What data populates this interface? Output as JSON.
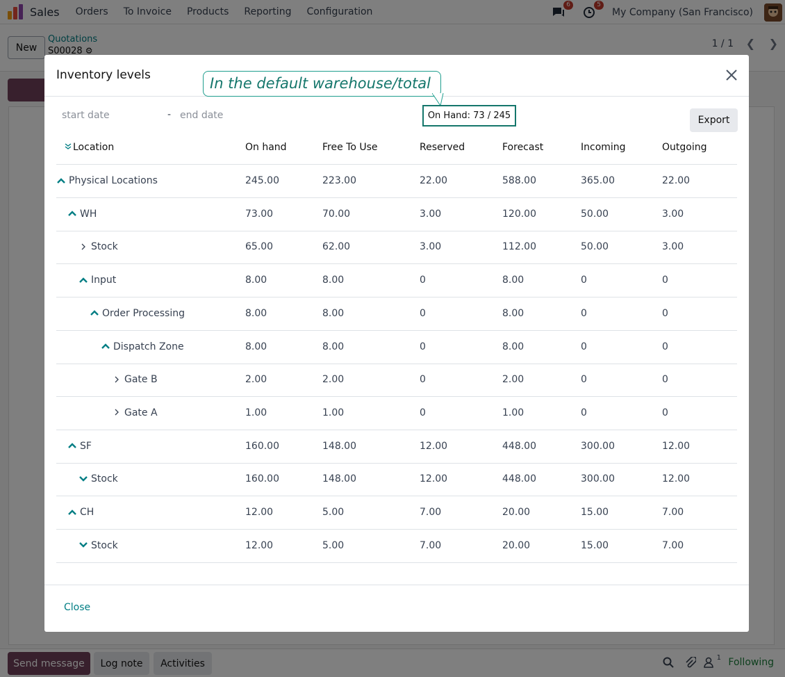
{
  "topbar": {
    "app_name": "Sales",
    "nav": [
      "Orders",
      "To Invoice",
      "Products",
      "Reporting",
      "Configuration"
    ],
    "messages_badge": "6",
    "activities_badge": "5",
    "company": "My Company (San Francisco)",
    "colors": {
      "logo_orange": "#f39c12",
      "logo_red": "#e74c3c",
      "logo_purple": "#8e44ad"
    }
  },
  "control_panel": {
    "new_label": "New",
    "breadcrumb_link": "Quotations",
    "record_name": "S00028",
    "pager": "1 / 1"
  },
  "chatter": {
    "send_message": "Send message",
    "log_note": "Log note",
    "activities": "Activities",
    "followers_count": "1",
    "following": "Following"
  },
  "modal": {
    "title": "Inventory levels",
    "start_placeholder": "start date",
    "separator": "-",
    "end_placeholder": "end date",
    "export_label": "Export",
    "close_label": "Close",
    "columns": [
      "Location",
      "On hand",
      "Free To Use",
      "Reserved",
      "Forecast",
      "Incoming",
      "Outgoing"
    ],
    "rows": [
      {
        "name": "Physical Locations",
        "level": 0,
        "toggle": "up",
        "values": [
          "245.00",
          "223.00",
          "22.00",
          "588.00",
          "365.00",
          "22.00"
        ]
      },
      {
        "name": "WH",
        "level": 1,
        "toggle": "up",
        "values": [
          "73.00",
          "70.00",
          "3.00",
          "120.00",
          "50.00",
          "3.00"
        ]
      },
      {
        "name": "Stock",
        "level": 2,
        "toggle": "right",
        "values": [
          "65.00",
          "62.00",
          "3.00",
          "112.00",
          "50.00",
          "3.00"
        ]
      },
      {
        "name": "Input",
        "level": 2,
        "toggle": "up",
        "values": [
          "8.00",
          "8.00",
          "0",
          "8.00",
          "0",
          "0"
        ]
      },
      {
        "name": "Order Processing",
        "level": 3,
        "toggle": "up",
        "values": [
          "8.00",
          "8.00",
          "0",
          "8.00",
          "0",
          "0"
        ]
      },
      {
        "name": "Dispatch Zone",
        "level": 4,
        "toggle": "up",
        "values": [
          "8.00",
          "8.00",
          "0",
          "8.00",
          "0",
          "0"
        ]
      },
      {
        "name": "Gate B",
        "level": 5,
        "toggle": "right",
        "values": [
          "2.00",
          "2.00",
          "0",
          "2.00",
          "0",
          "0"
        ]
      },
      {
        "name": "Gate A",
        "level": 5,
        "toggle": "right",
        "values": [
          "1.00",
          "1.00",
          "0",
          "1.00",
          "0",
          "0"
        ]
      },
      {
        "name": "SF",
        "level": 1,
        "toggle": "up",
        "values": [
          "160.00",
          "148.00",
          "12.00",
          "448.00",
          "300.00",
          "12.00"
        ]
      },
      {
        "name": "Stock",
        "level": 2,
        "toggle": "down",
        "values": [
          "160.00",
          "148.00",
          "12.00",
          "448.00",
          "300.00",
          "12.00"
        ]
      },
      {
        "name": "CH",
        "level": 1,
        "toggle": "up",
        "values": [
          "12.00",
          "5.00",
          "7.00",
          "20.00",
          "15.00",
          "7.00"
        ]
      },
      {
        "name": "Stock",
        "level": 2,
        "toggle": "down",
        "values": [
          "12.00",
          "5.00",
          "7.00",
          "20.00",
          "15.00",
          "7.00"
        ]
      }
    ]
  },
  "annotation": {
    "callout_text": "In the default warehouse/total",
    "onhand_text": "On Hand: 73 / 245"
  },
  "colors": {
    "primary_purple": "#71405a",
    "teal_link": "#017e84",
    "callout_teal": "#14766b",
    "badge_red": "#c0392b",
    "following_green": "#1b7f3a"
  }
}
